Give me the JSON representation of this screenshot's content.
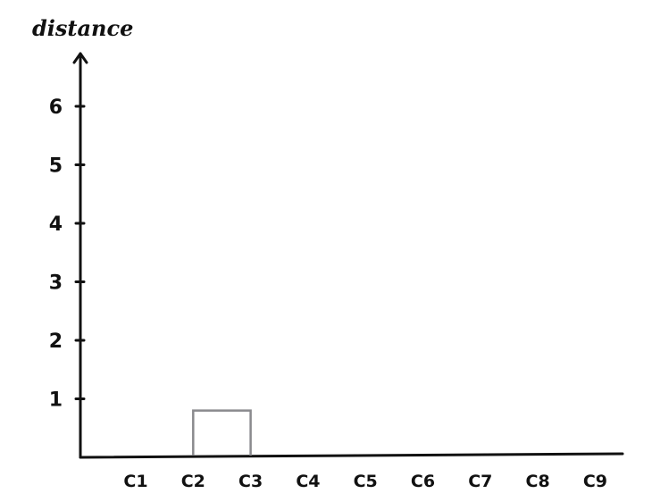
{
  "chart_data": {
    "type": "dendrogram",
    "ylabel": "distance",
    "xlabel": "",
    "categories": [
      "C1",
      "C2",
      "C3",
      "C4",
      "C5",
      "C6",
      "C7",
      "C8",
      "C9"
    ],
    "yticks": [
      1,
      2,
      3,
      4,
      5,
      6
    ],
    "ylim": [
      0,
      7
    ],
    "merges": [
      {
        "left": "C2",
        "right": "C3",
        "height": 0.8
      }
    ],
    "colors": {
      "axis": "#111111",
      "link": "#8a8a8e"
    }
  }
}
